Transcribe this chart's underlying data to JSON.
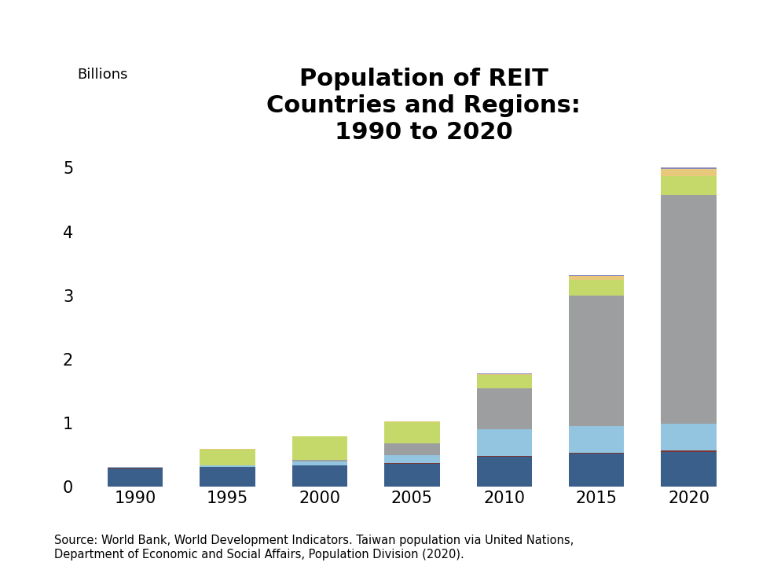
{
  "years": [
    "1990",
    "1995",
    "2000",
    "2005",
    "2010",
    "2015",
    "2020"
  ],
  "title": "Population of REIT\nCountries and Regions:\n1990 to 2020",
  "ylabel": "Billions",
  "source_text": "Source: World Bank, World Development Indicators. Taiwan population via United Nations,\nDepartment of Economic and Social Affairs, Population Division (2020).",
  "ylim": [
    0,
    5.5
  ],
  "yticks": [
    0,
    1,
    2,
    3,
    4,
    5
  ],
  "segments": {
    "dark_blue": [
      0.29,
      0.305,
      0.33,
      0.36,
      0.475,
      0.52,
      0.55
    ],
    "dark_red": [
      0.008,
      0.009,
      0.01,
      0.011,
      0.012,
      0.013,
      0.014
    ],
    "light_blue": [
      0.008,
      0.016,
      0.06,
      0.12,
      0.42,
      0.415,
      0.43
    ],
    "gray": [
      0.0,
      0.005,
      0.025,
      0.185,
      0.63,
      2.05,
      3.58
    ],
    "yellow_green": [
      0.008,
      0.25,
      0.36,
      0.34,
      0.215,
      0.25,
      0.29
    ],
    "orange": [
      0.0,
      0.003,
      0.006,
      0.01,
      0.015,
      0.055,
      0.11
    ],
    "purple": [
      0.0,
      0.002,
      0.003,
      0.005,
      0.008,
      0.015,
      0.03
    ]
  },
  "colors": {
    "dark_blue": "#3A5F8A",
    "dark_red": "#7B3535",
    "light_blue": "#93C4E0",
    "gray": "#9C9EA0",
    "yellow_green": "#C5D96A",
    "orange": "#E8C87A",
    "purple": "#8888BB"
  },
  "bar_width": 0.6,
  "background_color": "#FFFFFF",
  "title_fontsize": 22,
  "label_fontsize": 13,
  "tick_fontsize": 15,
  "source_fontsize": 10.5
}
